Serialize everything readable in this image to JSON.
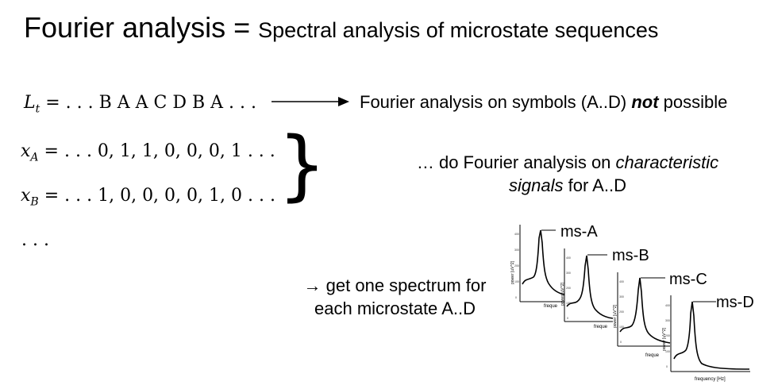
{
  "title": {
    "main": "Fourier analysis = ",
    "sub": "Spectral analysis of microstate sequences"
  },
  "equations": {
    "lt_var": "L",
    "lt_sub": "t",
    "lt_rhs": " = . . . B A A C D B A . . .",
    "xa_var": "x",
    "xa_sub": "A",
    "xa_rhs": " = . . . 0, 1, 1, 0, 0, 0, 1 . . .",
    "xb_var": "x",
    "xb_sub": "B",
    "xb_rhs": " = . . . 1, 0, 0, 0, 0, 1, 0 . . .",
    "ellipsis": ". . ."
  },
  "brace": "}",
  "statements": {
    "symbols_pre": "Fourier analysis on symbols (A..D) ",
    "symbols_not": "not",
    "symbols_post": " possible",
    "characteristic_1_pre": "… do Fourier analysis on ",
    "characteristic_1_ital": "characteristic",
    "characteristic_2_ital": "signals",
    "characteristic_2_post": " for A..D",
    "spectrum_1": "→ get one spectrum for",
    "spectrum_2": "each microstate A..D"
  },
  "spectra": {
    "panels": [
      {
        "label": "ms-A",
        "ylabel": "power [uV^2]",
        "xlabel": "freque",
        "ticks": [
          "400",
          "300",
          "200",
          "100",
          "0"
        ]
      },
      {
        "label": "ms-B",
        "ylabel": "power [uV^2]",
        "xlabel": "freque",
        "ticks": [
          "400",
          "300",
          "200",
          "100",
          "0"
        ]
      },
      {
        "label": "ms-C",
        "ylabel": "power [uV^2]",
        "xlabel": "freque",
        "ticks": [
          "400",
          "300",
          "200",
          "100",
          "0"
        ]
      },
      {
        "label": "ms-D",
        "ylabel": "power [uV^2]",
        "xlabel": "frequency [Hz]",
        "ticks": [
          "400",
          "300",
          "200",
          "100",
          "0"
        ]
      }
    ]
  },
  "colors": {
    "text": "#000000",
    "background": "#ffffff",
    "tick_text": "#333333"
  }
}
